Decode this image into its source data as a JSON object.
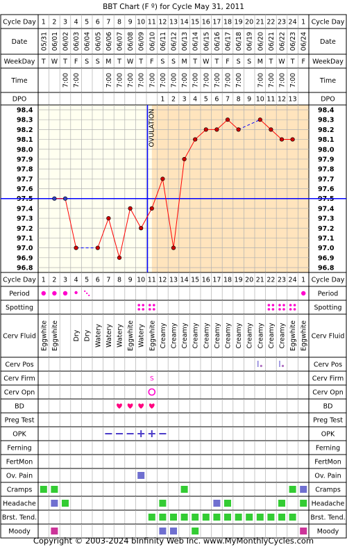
{
  "title": "BBT Chart (F º) for Cycle May 31, 2011",
  "footer": "Copyright © 2003-2024 bInfinity Web Inc.     www.MyMonthlyCycles.com",
  "labels": {
    "cycle_day": "Cycle Day",
    "date": "Date",
    "weekday": "WeekDay",
    "time": "Time",
    "dpo": "DPO",
    "ovulation": "OVULATION"
  },
  "colors": {
    "border": "#000000",
    "grid": "#b0b0b0",
    "label_bg": "#ffffff",
    "pre_ovulation_bg": "#fffff0",
    "post_ovulation_bg": "#ffe4bd",
    "coverline": "#0000ff",
    "ovulation_line": "#0000ff",
    "temp_line": "#ff0000",
    "temp_marker": "#cc0000",
    "gap_line": "#0000ff",
    "period": "#ff00cc",
    "heart": "#ff007f",
    "opk": "#4b3cc8",
    "green_box": "#33cc33",
    "blue_box": "#6f6fd0",
    "pink_box": "#cc3399"
  },
  "chart_data": {
    "type": "line",
    "title": "BBT Chart (F º) for Cycle May 31, 2011",
    "ylabel": "",
    "ylim": [
      96.8,
      98.4
    ],
    "y_ticks": [
      "98.4",
      "98.3",
      "98.2",
      "98.1",
      "98.0",
      "97.9",
      "97.8",
      "97.7",
      "97.6",
      "97.5",
      "97.4",
      "97.3",
      "97.2",
      "97.1",
      "97.0",
      "96.9",
      "96.8"
    ],
    "cycle_days": [
      1,
      2,
      3,
      4,
      5,
      6,
      7,
      8,
      9,
      10,
      11,
      12,
      13,
      14,
      15,
      16,
      17,
      18,
      19,
      20,
      21,
      22,
      23,
      24,
      1
    ],
    "dates": [
      "05/31",
      "06/01",
      "06/02",
      "06/03",
      "06/04",
      "06/05",
      "06/06",
      "06/07",
      "06/08",
      "06/09",
      "06/10",
      "06/11",
      "06/12",
      "06/13",
      "06/14",
      "06/15",
      "06/16",
      "06/17",
      "06/18",
      "06/19",
      "06/20",
      "06/21",
      "06/22",
      "06/23",
      "06/24"
    ],
    "weekdays": [
      "T",
      "W",
      "T",
      "F",
      "S",
      "S",
      "M",
      "T",
      "W",
      "T",
      "F",
      "S",
      "S",
      "M",
      "T",
      "W",
      "T",
      "F",
      "S",
      "S",
      "M",
      "T",
      "W",
      "T",
      "F"
    ],
    "times": [
      "",
      "",
      "7:00",
      "7:00",
      "",
      "",
      "7:00",
      "7:00",
      "7:00",
      "7:00",
      "7:00",
      "7:00",
      "7:00",
      "7:00",
      "7:00",
      "7:00",
      "7:00",
      "7:00",
      "7:00",
      "",
      "7:00",
      "7:00",
      "7:00",
      "7:00",
      ""
    ],
    "dpo": [
      "",
      "",
      "",
      "",
      "",
      "",
      "",
      "",
      "",
      "",
      "",
      "1",
      "2",
      "3",
      "4",
      "5",
      "6",
      "7",
      "8",
      "9",
      "10",
      "11",
      "12",
      "13",
      ""
    ],
    "temperatures": [
      null,
      97.5,
      97.5,
      97.0,
      null,
      97.0,
      97.3,
      96.9,
      97.4,
      97.2,
      97.4,
      97.7,
      97.0,
      97.9,
      98.1,
      98.2,
      98.2,
      98.3,
      98.2,
      null,
      98.3,
      98.2,
      98.1,
      98.1,
      null
    ],
    "coverline": 97.5,
    "ovulation_day_index": 10,
    "series": [
      {
        "values": [
          null,
          97.5,
          97.5,
          97.0,
          null,
          97.0,
          97.3,
          96.9,
          97.4,
          97.2,
          97.4,
          97.7,
          97.0,
          97.9,
          98.1,
          98.2,
          98.2,
          98.3,
          98.2,
          null,
          98.3,
          98.2,
          98.1,
          98.1,
          null
        ]
      }
    ],
    "rows": [
      {
        "label": "Cycle Day"
      },
      {
        "label": "Period",
        "marks": [
          {
            "i": 0,
            "t": "dot"
          },
          {
            "i": 1,
            "t": "dot"
          },
          {
            "i": 2,
            "t": "dot"
          },
          {
            "i": 3,
            "t": "dot-small"
          },
          {
            "i": 4,
            "t": "trail"
          },
          {
            "i": 24,
            "t": "dot"
          }
        ]
      },
      {
        "label": "Spotting",
        "marks": [
          {
            "i": 9,
            "t": "dots4"
          },
          {
            "i": 10,
            "t": "dots4"
          },
          {
            "i": 21,
            "t": "dots4"
          },
          {
            "i": 22,
            "t": "dots4"
          },
          {
            "i": 23,
            "t": "dots4"
          }
        ]
      },
      {
        "label": "Cerv Fluid",
        "tall": true,
        "values": [
          "Eggwhite",
          "Eggwhite",
          "",
          "Dry",
          "Dry",
          "Watery",
          "Watery",
          "Watery",
          "Eggwhite",
          "Watery",
          "Eggwhite",
          "Creamy",
          "Creamy",
          "Creamy",
          "Creamy",
          "Creamy",
          "Creamy",
          "Creamy",
          "Creamy",
          "Creamy",
          "Creamy",
          "Creamy",
          "Creamy",
          "Eggwhite",
          "Eggwhite"
        ]
      },
      {
        "label": "Cerv Pos",
        "marks": [
          {
            "i": 20,
            "t": "pos"
          },
          {
            "i": 22,
            "t": "pos"
          }
        ]
      },
      {
        "label": "Cerv Firm",
        "marks": [
          {
            "i": 10,
            "t": "text",
            "v": "S"
          }
        ]
      },
      {
        "label": "Cerv Opn",
        "marks": [
          {
            "i": 10,
            "t": "circle"
          }
        ]
      },
      {
        "label": "BD",
        "marks": [
          {
            "i": 7,
            "t": "heart"
          },
          {
            "i": 8,
            "t": "heart"
          },
          {
            "i": 9,
            "t": "heart"
          },
          {
            "i": 10,
            "t": "heart"
          }
        ]
      },
      {
        "label": "Preg Test"
      },
      {
        "label": "OPK",
        "marks": [
          {
            "i": 6,
            "t": "minus"
          },
          {
            "i": 7,
            "t": "minus"
          },
          {
            "i": 8,
            "t": "minus"
          },
          {
            "i": 9,
            "t": "plus"
          },
          {
            "i": 10,
            "t": "plus"
          },
          {
            "i": 11,
            "t": "minus"
          }
        ]
      },
      {
        "label": "Ferning"
      },
      {
        "label": "FertMon"
      },
      {
        "label": "Ov. Pain",
        "marks": [
          {
            "i": 9,
            "t": "box-blue"
          }
        ]
      },
      {
        "label": "Cramps",
        "marks": [
          {
            "i": 0,
            "t": "box-green"
          },
          {
            "i": 1,
            "t": "box-green"
          },
          {
            "i": 13,
            "t": "box-green"
          },
          {
            "i": 23,
            "t": "box-green"
          },
          {
            "i": 24,
            "t": "box-blue"
          }
        ]
      },
      {
        "label": "Headache",
        "marks": [
          {
            "i": 1,
            "t": "box-blue"
          },
          {
            "i": 2,
            "t": "box-green"
          },
          {
            "i": 11,
            "t": "box-green"
          },
          {
            "i": 16,
            "t": "box-blue"
          },
          {
            "i": 17,
            "t": "box-green"
          },
          {
            "i": 22,
            "t": "box-green"
          },
          {
            "i": 24,
            "t": "box-green"
          }
        ]
      },
      {
        "label": "Brst. Tend.",
        "marks": [
          {
            "i": 10,
            "t": "box-green"
          },
          {
            "i": 11,
            "t": "box-green"
          },
          {
            "i": 12,
            "t": "box-green"
          },
          {
            "i": 13,
            "t": "box-green"
          },
          {
            "i": 14,
            "t": "box-green"
          },
          {
            "i": 15,
            "t": "box-green"
          },
          {
            "i": 16,
            "t": "box-green"
          },
          {
            "i": 17,
            "t": "box-green"
          },
          {
            "i": 18,
            "t": "box-green"
          },
          {
            "i": 19,
            "t": "box-green"
          },
          {
            "i": 20,
            "t": "box-green"
          },
          {
            "i": 21,
            "t": "box-green"
          },
          {
            "i": 22,
            "t": "box-green"
          },
          {
            "i": 23,
            "t": "box-green"
          }
        ]
      },
      {
        "label": "Moody",
        "marks": [
          {
            "i": 1,
            "t": "box-pink"
          },
          {
            "i": 11,
            "t": "box-blue"
          },
          {
            "i": 12,
            "t": "box-blue"
          },
          {
            "i": 14,
            "t": "box-green"
          },
          {
            "i": 24,
            "t": "box-pink"
          }
        ]
      }
    ]
  }
}
